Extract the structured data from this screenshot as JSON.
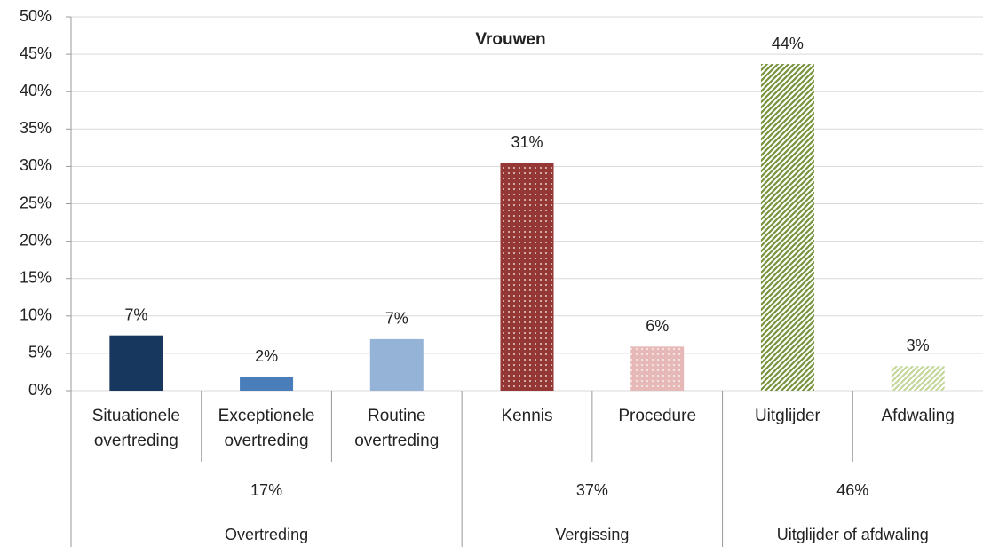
{
  "chart_data": {
    "type": "bar",
    "title": "Vrouwen",
    "ylim": [
      0,
      50
    ],
    "yticks": [
      {
        "value": 0,
        "label": "0%"
      },
      {
        "value": 5,
        "label": "5%"
      },
      {
        "value": 10,
        "label": "10%"
      },
      {
        "value": 15,
        "label": "15%"
      },
      {
        "value": 20,
        "label": "20%"
      },
      {
        "value": 25,
        "label": "25%"
      },
      {
        "value": 30,
        "label": "30%"
      },
      {
        "value": 35,
        "label": "35%"
      },
      {
        "value": 40,
        "label": "40%"
      },
      {
        "value": 45,
        "label": "45%"
      },
      {
        "value": 50,
        "label": "50%"
      }
    ],
    "grid": true,
    "groups": [
      {
        "name": "Overtreding",
        "value": 17,
        "value_label": "17%",
        "categories": [
          "Situationele overtreding",
          "Exceptionele overtreding",
          "Routine overtreding"
        ],
        "values": [
          7.4,
          1.9,
          6.9
        ],
        "value_labels": [
          "7%",
          "2%",
          "7%"
        ],
        "colors": [
          "#17375e",
          "#4a7ebb",
          "#95b3d7"
        ],
        "patterns": [
          "solid",
          "solid",
          "solid"
        ]
      },
      {
        "name": "Vergissing",
        "value": 37,
        "value_label": "37%",
        "categories": [
          "Kennis",
          "Procedure"
        ],
        "values": [
          30.5,
          5.9
        ],
        "value_labels": [
          "31%",
          "6%"
        ],
        "colors": [
          "#953735",
          "#e6b9b8"
        ],
        "patterns": [
          "dots",
          "dots"
        ]
      },
      {
        "name": "Uitglijder of afdwaling",
        "value": 46,
        "value_label": "46%",
        "categories": [
          "Uitglijder",
          "Afdwaling"
        ],
        "values": [
          43.7,
          3.3
        ],
        "value_labels": [
          "44%",
          "3%"
        ],
        "colors": [
          "#77933c",
          "#c3d69b"
        ],
        "patterns": [
          "hatch",
          "hatch"
        ]
      }
    ]
  }
}
